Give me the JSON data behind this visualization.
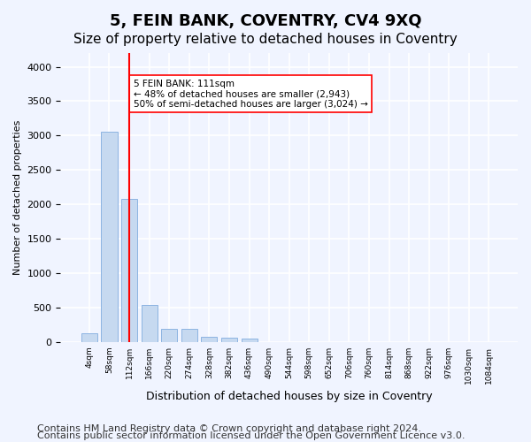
{
  "title": "5, FEIN BANK, COVENTRY, CV4 9XQ",
  "subtitle": "Size of property relative to detached houses in Coventry",
  "xlabel": "Distribution of detached houses by size in Coventry",
  "ylabel": "Number of detached properties",
  "categories": [
    "4sqm",
    "58sqm",
    "112sqm",
    "166sqm",
    "220sqm",
    "274sqm",
    "328sqm",
    "382sqm",
    "436sqm",
    "490sqm",
    "544sqm",
    "598sqm",
    "652sqm",
    "706sqm",
    "760sqm",
    "814sqm",
    "868sqm",
    "922sqm",
    "976sqm",
    "1030sqm",
    "1084sqm"
  ],
  "values": [
    130,
    3050,
    2080,
    540,
    195,
    195,
    75,
    55,
    50,
    0,
    0,
    0,
    0,
    0,
    0,
    0,
    0,
    0,
    0,
    0,
    0
  ],
  "bar_color": "#c6d9f0",
  "bar_edge_color": "#8db4e2",
  "vline_x": 2,
  "vline_color": "red",
  "annotation_text": "5 FEIN BANK: 111sqm\n← 48% of detached houses are smaller (2,943)\n50% of semi-detached houses are larger (3,024) →",
  "annotation_box_color": "white",
  "annotation_box_edge_color": "red",
  "ylim": [
    0,
    4200
  ],
  "yticks": [
    0,
    500,
    1000,
    1500,
    2000,
    2500,
    3000,
    3500,
    4000
  ],
  "footer_line1": "Contains HM Land Registry data © Crown copyright and database right 2024.",
  "footer_line2": "Contains public sector information licensed under the Open Government Licence v3.0.",
  "background_color": "#f0f4ff",
  "grid_color": "white",
  "title_fontsize": 13,
  "subtitle_fontsize": 11,
  "footer_fontsize": 8
}
